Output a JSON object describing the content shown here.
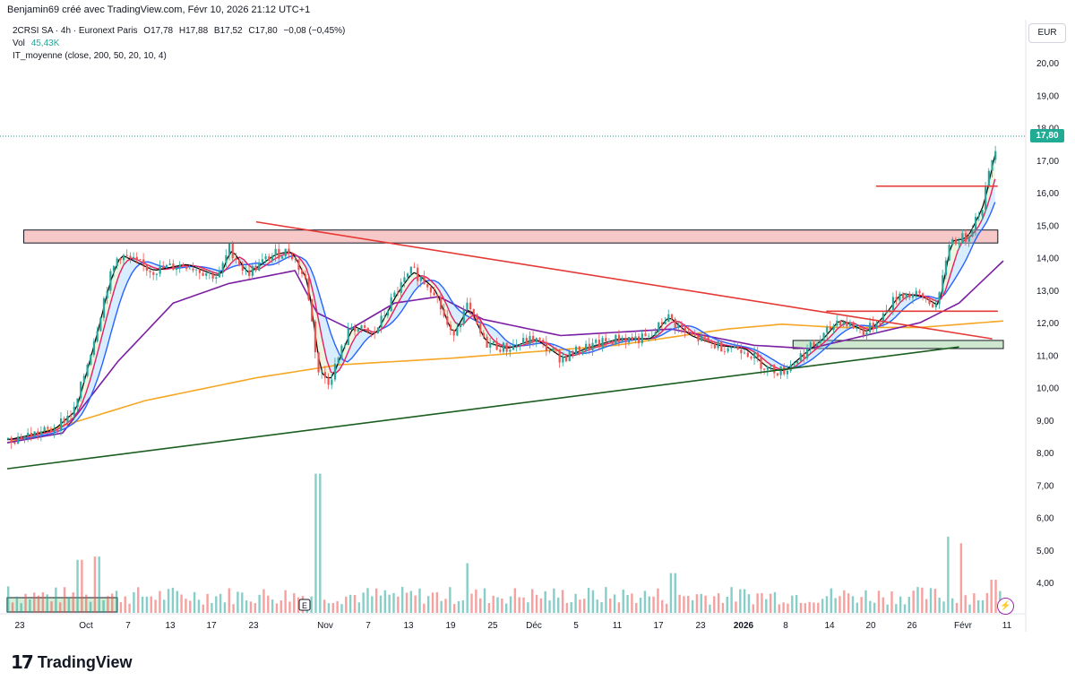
{
  "header": {
    "attribution": "Benjamin69 créé avec TradingView.com, Févr 10, 2026 21:12 UTC+1"
  },
  "legend": {
    "symbol": "2CRSI SA · 4h · Euronext Paris",
    "open": "O17,78",
    "high": "H17,88",
    "low": "B17,52",
    "close": "C17,80",
    "change": "−0,08 (−0,45%)",
    "vol_label": "Vol",
    "vol_value": "45,43K",
    "indicator": "IT_moyenne (close, 200, 50, 20, 10, 4)"
  },
  "axis": {
    "currency": "EUR",
    "last_price": "17,80"
  },
  "footer": {
    "brand": "TradingView",
    "logo_icon": "tradingview-logo-icon"
  },
  "colors": {
    "up": "#26a69a",
    "down": "#ef5350",
    "ma_200": "#f5a623",
    "ma_50": "#7b1fa2",
    "ma_20": "#2962ff",
    "ma_10": "#e91e63",
    "ma_4": "#000000",
    "trend_support": "#1b5e20",
    "trend_resistance": "#e53935"
  },
  "chart_data": {
    "type": "candlestick",
    "y_ticks": [
      "20,00",
      "19,00",
      "18,00",
      "17,00",
      "16,00",
      "15,00",
      "14,00",
      "13,00",
      "12,00",
      "11,00",
      "10,00",
      "9,00",
      "8,00",
      "7,00",
      "6,00",
      "5,00",
      "4,00"
    ],
    "y_range": [
      3.0,
      20.9
    ],
    "x_ticks": [
      "23",
      "Oct",
      "7",
      "13",
      "17",
      "23",
      "Nov",
      "7",
      "13",
      "19",
      "25",
      "Déc",
      "5",
      "11",
      "17",
      "23",
      "2026",
      "8",
      "14",
      "20",
      "26",
      "Févr",
      "11"
    ],
    "last_close": 17.8,
    "price_path": [
      {
        "d": 0,
        "p": 8.4
      },
      {
        "d": 8,
        "p": 8.7
      },
      {
        "d": 12,
        "p": 9.3
      },
      {
        "d": 16,
        "p": 11.8
      },
      {
        "d": 18,
        "p": 13.2
      },
      {
        "d": 20,
        "p": 14.1
      },
      {
        "d": 26,
        "p": 13.6
      },
      {
        "d": 32,
        "p": 13.8
      },
      {
        "d": 38,
        "p": 13.4
      },
      {
        "d": 40,
        "p": 14.3
      },
      {
        "d": 43,
        "p": 13.5
      },
      {
        "d": 48,
        "p": 14.1
      },
      {
        "d": 51,
        "p": 14.2
      },
      {
        "d": 54,
        "p": 13.2
      },
      {
        "d": 56,
        "p": 10.5
      },
      {
        "d": 58,
        "p": 10.2
      },
      {
        "d": 62,
        "p": 11.9
      },
      {
        "d": 66,
        "p": 11.6
      },
      {
        "d": 70,
        "p": 12.9
      },
      {
        "d": 73,
        "p": 13.6
      },
      {
        "d": 77,
        "p": 13.0
      },
      {
        "d": 80,
        "p": 11.6
      },
      {
        "d": 83,
        "p": 12.5
      },
      {
        "d": 86,
        "p": 11.4
      },
      {
        "d": 90,
        "p": 11.2
      },
      {
        "d": 95,
        "p": 11.5
      },
      {
        "d": 100,
        "p": 10.9
      },
      {
        "d": 104,
        "p": 11.2
      },
      {
        "d": 110,
        "p": 11.5
      },
      {
        "d": 116,
        "p": 11.5
      },
      {
        "d": 119,
        "p": 12.2
      },
      {
        "d": 123,
        "p": 11.6
      },
      {
        "d": 128,
        "p": 11.3
      },
      {
        "d": 133,
        "p": 11.2
      },
      {
        "d": 137,
        "p": 10.6
      },
      {
        "d": 140,
        "p": 10.5
      },
      {
        "d": 144,
        "p": 11.1
      },
      {
        "d": 147,
        "p": 11.5
      },
      {
        "d": 150,
        "p": 12.1
      },
      {
        "d": 155,
        "p": 11.7
      },
      {
        "d": 158,
        "p": 12.2
      },
      {
        "d": 161,
        "p": 12.9
      },
      {
        "d": 165,
        "p": 12.8
      },
      {
        "d": 168,
        "p": 12.5
      },
      {
        "d": 170,
        "p": 14.5
      },
      {
        "d": 173,
        "p": 14.6
      },
      {
        "d": 176,
        "p": 15.6
      },
      {
        "d": 178,
        "p": 17.2
      },
      {
        "d": 179,
        "p": 17.8
      }
    ],
    "moving_averages": [
      {
        "name": "MA200",
        "color": "#f5a623",
        "points": [
          [
            0,
            8.3
          ],
          [
            25,
            9.6
          ],
          [
            45,
            10.3
          ],
          [
            60,
            10.7
          ],
          [
            80,
            10.9
          ],
          [
            110,
            11.3
          ],
          [
            130,
            11.8
          ],
          [
            140,
            11.95
          ],
          [
            150,
            11.85
          ],
          [
            165,
            11.85
          ],
          [
            180,
            12.05
          ]
        ]
      },
      {
        "name": "MA50",
        "color": "#7b1fa2",
        "points": [
          [
            0,
            8.3
          ],
          [
            10,
            8.6
          ],
          [
            20,
            10.8
          ],
          [
            30,
            12.6
          ],
          [
            40,
            13.2
          ],
          [
            52,
            13.6
          ],
          [
            56,
            12.3
          ],
          [
            62,
            11.8
          ],
          [
            70,
            12.6
          ],
          [
            78,
            12.8
          ],
          [
            86,
            12.1
          ],
          [
            100,
            11.6
          ],
          [
            120,
            11.8
          ],
          [
            135,
            11.3
          ],
          [
            145,
            11.2
          ],
          [
            155,
            11.6
          ],
          [
            165,
            12.0
          ],
          [
            172,
            12.6
          ],
          [
            180,
            13.9
          ]
        ]
      }
    ],
    "drawings": [
      {
        "type": "zone",
        "label": "resistance-zone",
        "from_day": 3,
        "to_day": 179,
        "y1": 14.45,
        "y2": 14.85,
        "color": "#ef9a9a"
      },
      {
        "type": "zone",
        "label": "support-zone",
        "from_day": 142,
        "to_day": 180,
        "y1": 11.2,
        "y2": 11.45,
        "color": "#a5d6a7"
      },
      {
        "type": "trendline",
        "label": "descending-resistance",
        "from": [
          45,
          15.1
        ],
        "to": [
          178,
          11.5
        ],
        "color": "#e53935"
      },
      {
        "type": "trendline",
        "label": "ascending-support",
        "from": [
          0,
          7.5
        ],
        "to": [
          172,
          11.25
        ],
        "color": "#1b5e20"
      },
      {
        "type": "hline",
        "label": "level-16-2",
        "from_day": 157,
        "to_day": 179,
        "y": 16.2,
        "color": "#e53935"
      },
      {
        "type": "hline",
        "label": "level-12-35",
        "from_day": 148,
        "to_day": 179,
        "y": 12.35,
        "color": "#e53935"
      }
    ],
    "volume_spikes": [
      {
        "d": 0,
        "v": 0.8
      },
      {
        "d": 13,
        "v": 1.6
      },
      {
        "d": 16,
        "v": 1.7
      },
      {
        "d": 56,
        "v": 4.2
      },
      {
        "d": 83,
        "v": 1.5
      },
      {
        "d": 120,
        "v": 1.2
      },
      {
        "d": 170,
        "v": 2.3
      },
      {
        "d": 172,
        "v": 2.1
      },
      {
        "d": 178,
        "v": 1.0
      }
    ],
    "grid": "off",
    "legend_position": "top-left"
  }
}
